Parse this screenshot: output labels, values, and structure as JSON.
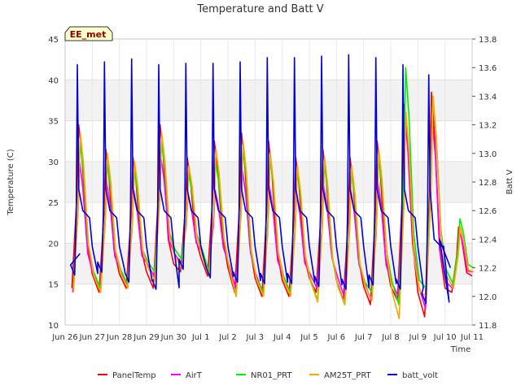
{
  "chart_data": {
    "type": "line",
    "title": "Temperature and Batt V",
    "xlabel": "Time",
    "ylabel": "Temperature (C)",
    "y2label": "Batt V",
    "badge": "EE_met",
    "xlim": [
      26,
      41
    ],
    "ylim": [
      10,
      45
    ],
    "y2lim": [
      11.8,
      13.8
    ],
    "x_ticks": [
      {
        "x": 26,
        "label": "Jun 26"
      },
      {
        "x": 27,
        "label": "Jun 27"
      },
      {
        "x": 28,
        "label": "Jun 28"
      },
      {
        "x": 29,
        "label": "Jun 29"
      },
      {
        "x": 30,
        "label": "Jun 30"
      },
      {
        "x": 31,
        "label": "Jul 1"
      },
      {
        "x": 32,
        "label": "Jul 2"
      },
      {
        "x": 33,
        "label": "Jul 3"
      },
      {
        "x": 34,
        "label": "Jul 4"
      },
      {
        "x": 35,
        "label": "Jul 5"
      },
      {
        "x": 36,
        "label": "Jul 6"
      },
      {
        "x": 37,
        "label": "Jul 7"
      },
      {
        "x": 38,
        "label": "Jul 8"
      },
      {
        "x": 39,
        "label": "Jul 9"
      },
      {
        "x": 40,
        "label": "Jul 10"
      },
      {
        "x": 41,
        "label": "Jul 11"
      }
    ],
    "y_ticks": [
      10,
      15,
      20,
      25,
      30,
      35,
      40,
      45
    ],
    "y2_ticks": [
      "11.8",
      "12.0",
      "12.2",
      "12.4",
      "12.6",
      "12.8",
      "13.0",
      "13.2",
      "13.4",
      "13.6",
      "13.8"
    ],
    "bands": [
      [
        15,
        20
      ],
      [
        25,
        30
      ],
      [
        35,
        40
      ]
    ],
    "series": [
      {
        "name": "PanelTemp",
        "color": "#ff0000",
        "axis": "left",
        "days": [
          26.5,
          27.5,
          28.5,
          29.5,
          30.5,
          31.5,
          32.5,
          33.5,
          34.5,
          35.5,
          36.5,
          37.5,
          38.5,
          39.5,
          40.5
        ],
        "lows": [
          14.5,
          14.0,
          14.5,
          14.5,
          16.5,
          16.0,
          14.0,
          13.5,
          13.5,
          14.0,
          13.0,
          12.5,
          13.0,
          11.0,
          14.0
        ],
        "highs": [
          34.5,
          31.5,
          30.5,
          34.5,
          30.5,
          32.5,
          33.5,
          32.5,
          30.5,
          31.5,
          30.5,
          32.5,
          37.0,
          38.5,
          22.0
        ],
        "phase": 0
      },
      {
        "name": "AirT",
        "color": "#ff00ff",
        "axis": "left",
        "days": [
          26.5,
          27.5,
          28.5,
          29.5,
          30.5,
          31.5,
          32.5,
          33.5,
          34.5,
          35.5,
          36.5,
          37.5,
          38.5,
          39.5,
          40.5
        ],
        "lows": [
          14.0,
          14.5,
          15.0,
          16.0,
          17.5,
          16.5,
          14.5,
          14.0,
          14.0,
          14.5,
          13.5,
          13.0,
          13.5,
          12.0,
          14.5
        ],
        "highs": [
          30.0,
          27.5,
          26.5,
          30.5,
          26.0,
          26.5,
          29.0,
          27.0,
          26.0,
          27.0,
          26.5,
          27.5,
          35.0,
          35.0,
          21.5
        ],
        "phase": 0.03
      },
      {
        "name": "NR01_PRT",
        "color": "#00ee00",
        "axis": "left",
        "days": [
          26.5,
          27.5,
          28.5,
          29.5,
          30.5,
          31.5,
          32.5,
          33.5,
          34.5,
          35.5,
          36.5,
          37.5,
          38.5,
          39.5,
          40.5
        ],
        "lows": [
          14.5,
          14.5,
          15.0,
          16.5,
          18.0,
          16.5,
          13.5,
          14.0,
          14.0,
          13.0,
          12.5,
          14.0,
          12.5,
          14.5,
          15.0
        ],
        "highs": [
          32.5,
          30.0,
          29.0,
          32.5,
          28.5,
          30.0,
          32.0,
          30.5,
          29.0,
          30.0,
          29.0,
          30.5,
          41.5,
          38.0,
          23.0
        ],
        "phase": 0.05
      },
      {
        "name": "AM25T_PRT",
        "color": "#ffa500",
        "axis": "left",
        "days": [
          26.5,
          27.5,
          28.5,
          29.5,
          30.5,
          31.5,
          32.5,
          33.5,
          34.5,
          35.5,
          36.5,
          37.5,
          38.5,
          39.5,
          40.5
        ],
        "lows": [
          14.0,
          14.0,
          14.5,
          15.5,
          17.0,
          16.0,
          13.5,
          13.5,
          13.5,
          12.8,
          12.5,
          13.0,
          10.8,
          13.5,
          14.5
        ],
        "highs": [
          33.5,
          31.0,
          30.0,
          33.5,
          29.5,
          31.5,
          32.5,
          31.0,
          29.5,
          30.5,
          29.5,
          31.5,
          36.0,
          38.0,
          22.0
        ],
        "phase": 0.06
      },
      {
        "name": "batt_volt",
        "color": "#0000dd",
        "axis": "right",
        "spike": true,
        "days": [
          26.45,
          27.45,
          28.45,
          29.45,
          30.45,
          31.45,
          32.45,
          33.45,
          34.45,
          35.45,
          36.45,
          37.45,
          38.45,
          39.4
        ],
        "highs": [
          13.62,
          13.64,
          13.66,
          13.62,
          13.63,
          13.63,
          13.64,
          13.67,
          13.67,
          13.68,
          13.69,
          13.67,
          13.62,
          13.55
        ],
        "mids": [
          12.6,
          12.6,
          12.6,
          12.6,
          12.6,
          12.6,
          12.6,
          12.6,
          12.6,
          12.6,
          12.6,
          12.6,
          12.6,
          12.4
        ],
        "lows": [
          12.1,
          12.12,
          12.05,
          12.0,
          12.14,
          12.08,
          12.05,
          12.04,
          12.04,
          12.02,
          12.0,
          12.03,
          12.0,
          11.9
        ],
        "start": 26.55,
        "end": 40.2,
        "end_value": 12.2
      }
    ],
    "legend": {
      "position": "bottom",
      "entries": [
        "PanelTemp",
        "AirT",
        "NR01_PRT",
        "AM25T_PRT",
        "batt_volt"
      ]
    }
  }
}
